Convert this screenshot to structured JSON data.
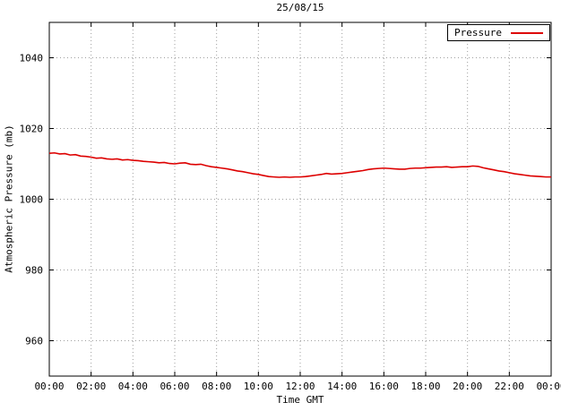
{
  "chart_data": {
    "type": "line",
    "title": "25/08/15",
    "xlabel": "Time GMT",
    "ylabel": "Atmospheric Pressure (mb)",
    "grid": true,
    "legend": {
      "position": "top-right",
      "boxed": true,
      "entries": [
        {
          "name": "Pressure",
          "color": "#dd0000"
        }
      ]
    },
    "x_range": [
      0,
      24
    ],
    "y_range": [
      950,
      1050
    ],
    "x_ticks": [
      {
        "value": 0,
        "label": "00:00"
      },
      {
        "value": 2,
        "label": "02:00"
      },
      {
        "value": 4,
        "label": "04:00"
      },
      {
        "value": 6,
        "label": "06:00"
      },
      {
        "value": 8,
        "label": "08:00"
      },
      {
        "value": 10,
        "label": "10:00"
      },
      {
        "value": 12,
        "label": "12:00"
      },
      {
        "value": 14,
        "label": "14:00"
      },
      {
        "value": 16,
        "label": "16:00"
      },
      {
        "value": 18,
        "label": "18:00"
      },
      {
        "value": 20,
        "label": "20:00"
      },
      {
        "value": 22,
        "label": "22:00"
      },
      {
        "value": 24,
        "label": "00:00"
      }
    ],
    "y_ticks": [
      960,
      980,
      1000,
      1020,
      1040
    ],
    "x_start": 0,
    "x_step": 0.25,
    "x_unit": "hours GMT",
    "y_unit": "mb",
    "series": [
      {
        "name": "Pressure",
        "color": "#dd0000",
        "y": [
          1013.0,
          1013.1,
          1012.8,
          1012.9,
          1012.5,
          1012.6,
          1012.2,
          1012.1,
          1011.9,
          1011.6,
          1011.7,
          1011.4,
          1011.3,
          1011.4,
          1011.1,
          1011.2,
          1011.0,
          1010.9,
          1010.7,
          1010.6,
          1010.5,
          1010.3,
          1010.4,
          1010.1,
          1010.0,
          1010.2,
          1010.3,
          1009.9,
          1009.8,
          1009.9,
          1009.5,
          1009.2,
          1009.0,
          1008.8,
          1008.6,
          1008.3,
          1008.0,
          1007.8,
          1007.5,
          1007.2,
          1007.0,
          1006.7,
          1006.4,
          1006.3,
          1006.2,
          1006.3,
          1006.2,
          1006.3,
          1006.3,
          1006.4,
          1006.6,
          1006.8,
          1007.0,
          1007.3,
          1007.1,
          1007.2,
          1007.3,
          1007.5,
          1007.7,
          1007.9,
          1008.1,
          1008.4,
          1008.6,
          1008.7,
          1008.8,
          1008.7,
          1008.6,
          1008.5,
          1008.5,
          1008.7,
          1008.8,
          1008.8,
          1008.9,
          1009.0,
          1009.1,
          1009.1,
          1009.2,
          1009.0,
          1009.1,
          1009.2,
          1009.2,
          1009.4,
          1009.3,
          1008.9,
          1008.6,
          1008.3,
          1008.0,
          1007.8,
          1007.5,
          1007.2,
          1007.0,
          1006.8,
          1006.6,
          1006.5,
          1006.4,
          1006.3,
          1006.3
        ]
      }
    ]
  }
}
